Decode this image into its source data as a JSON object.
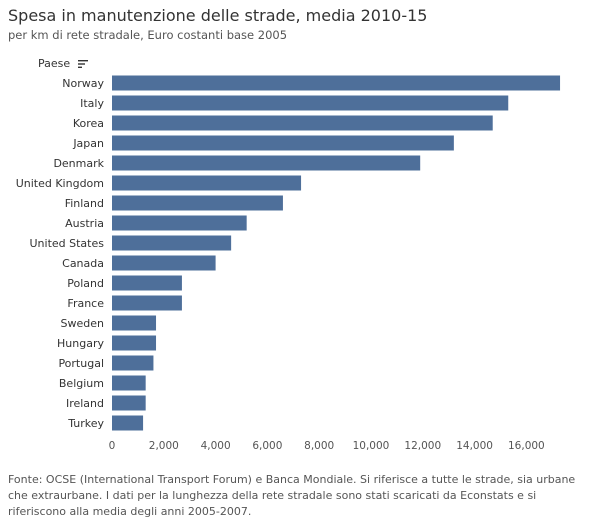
{
  "chart_data": {
    "type": "bar",
    "orientation": "horizontal",
    "title": "Spesa in manutenzione delle strade, media 2010-15",
    "subtitle": "per km di rete stradale, Euro costanti base 2005",
    "category_header": "Paese",
    "categories": [
      "Norway",
      "Italy",
      "Korea",
      "Japan",
      "Denmark",
      "United Kingdom",
      "Finland",
      "Austria",
      "United States",
      "Canada",
      "Poland",
      "France",
      "Sweden",
      "Hungary",
      "Portugal",
      "Belgium",
      "Ireland",
      "Turkey"
    ],
    "values": [
      17300,
      15300,
      14700,
      13200,
      11900,
      7300,
      6600,
      5200,
      4600,
      4000,
      2700,
      2700,
      1700,
      1700,
      1600,
      1300,
      1300,
      1200
    ],
    "xlim": [
      0,
      17800
    ],
    "xticks": [
      0,
      2000,
      4000,
      6000,
      8000,
      10000,
      12000,
      14000,
      16000
    ],
    "xtick_labels": [
      "0",
      "2,000",
      "4,000",
      "6,000",
      "8,000",
      "10,000",
      "12,000",
      "14,000",
      "16,000"
    ],
    "bar_color": "#4e6f9a",
    "grid": false,
    "sort": "descending",
    "footnote": "Fonte: OCSE (International Transport Forum) e Banca Mondiale. Si riferisce a tutte le strade, sia urbane che extraurbane. I dati per la lunghezza della rete stradale sono stati scaricati da Econstats e si riferiscono alla media degli anni 2005-2007."
  }
}
